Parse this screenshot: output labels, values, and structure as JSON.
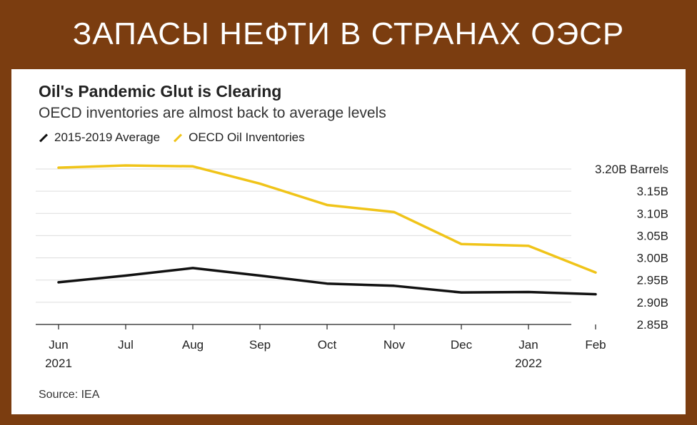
{
  "banner": {
    "title": "ЗАПАСЫ НЕФТИ В СТРАНАХ ОЭСР"
  },
  "chart_data": {
    "type": "line",
    "title": "Oil's Pandemic Glut is Clearing",
    "subtitle": "OECD inventories are almost back to average levels",
    "x": [
      "Jun",
      "Jul",
      "Aug",
      "Sep",
      "Oct",
      "Nov",
      "Dec",
      "Jan",
      "Feb"
    ],
    "x_sublabels": [
      "2021",
      "",
      "",
      "",
      "",
      "",
      "",
      "2022",
      ""
    ],
    "y_ticks": [
      "3.20B Barrels",
      "3.15B",
      "3.10B",
      "3.05B",
      "3.00B",
      "2.95B",
      "2.90B",
      "2.85B"
    ],
    "y_tick_values": [
      3.2,
      3.15,
      3.1,
      3.05,
      3.0,
      2.95,
      2.9,
      2.85
    ],
    "ylim": [
      2.85,
      3.2
    ],
    "grid": true,
    "legend_position": "top-left",
    "series": [
      {
        "name": "2015-2019 Average",
        "color": "#111111",
        "values": [
          2.945,
          2.96,
          2.977,
          2.96,
          2.942,
          2.937,
          2.922,
          2.923,
          2.918
        ]
      },
      {
        "name": "OECD Oil Inventories",
        "color": "#f0c419",
        "values": [
          3.203,
          3.208,
          3.206,
          3.167,
          3.119,
          3.103,
          3.031,
          3.027,
          2.967
        ]
      }
    ],
    "source": "Source: IEA"
  }
}
